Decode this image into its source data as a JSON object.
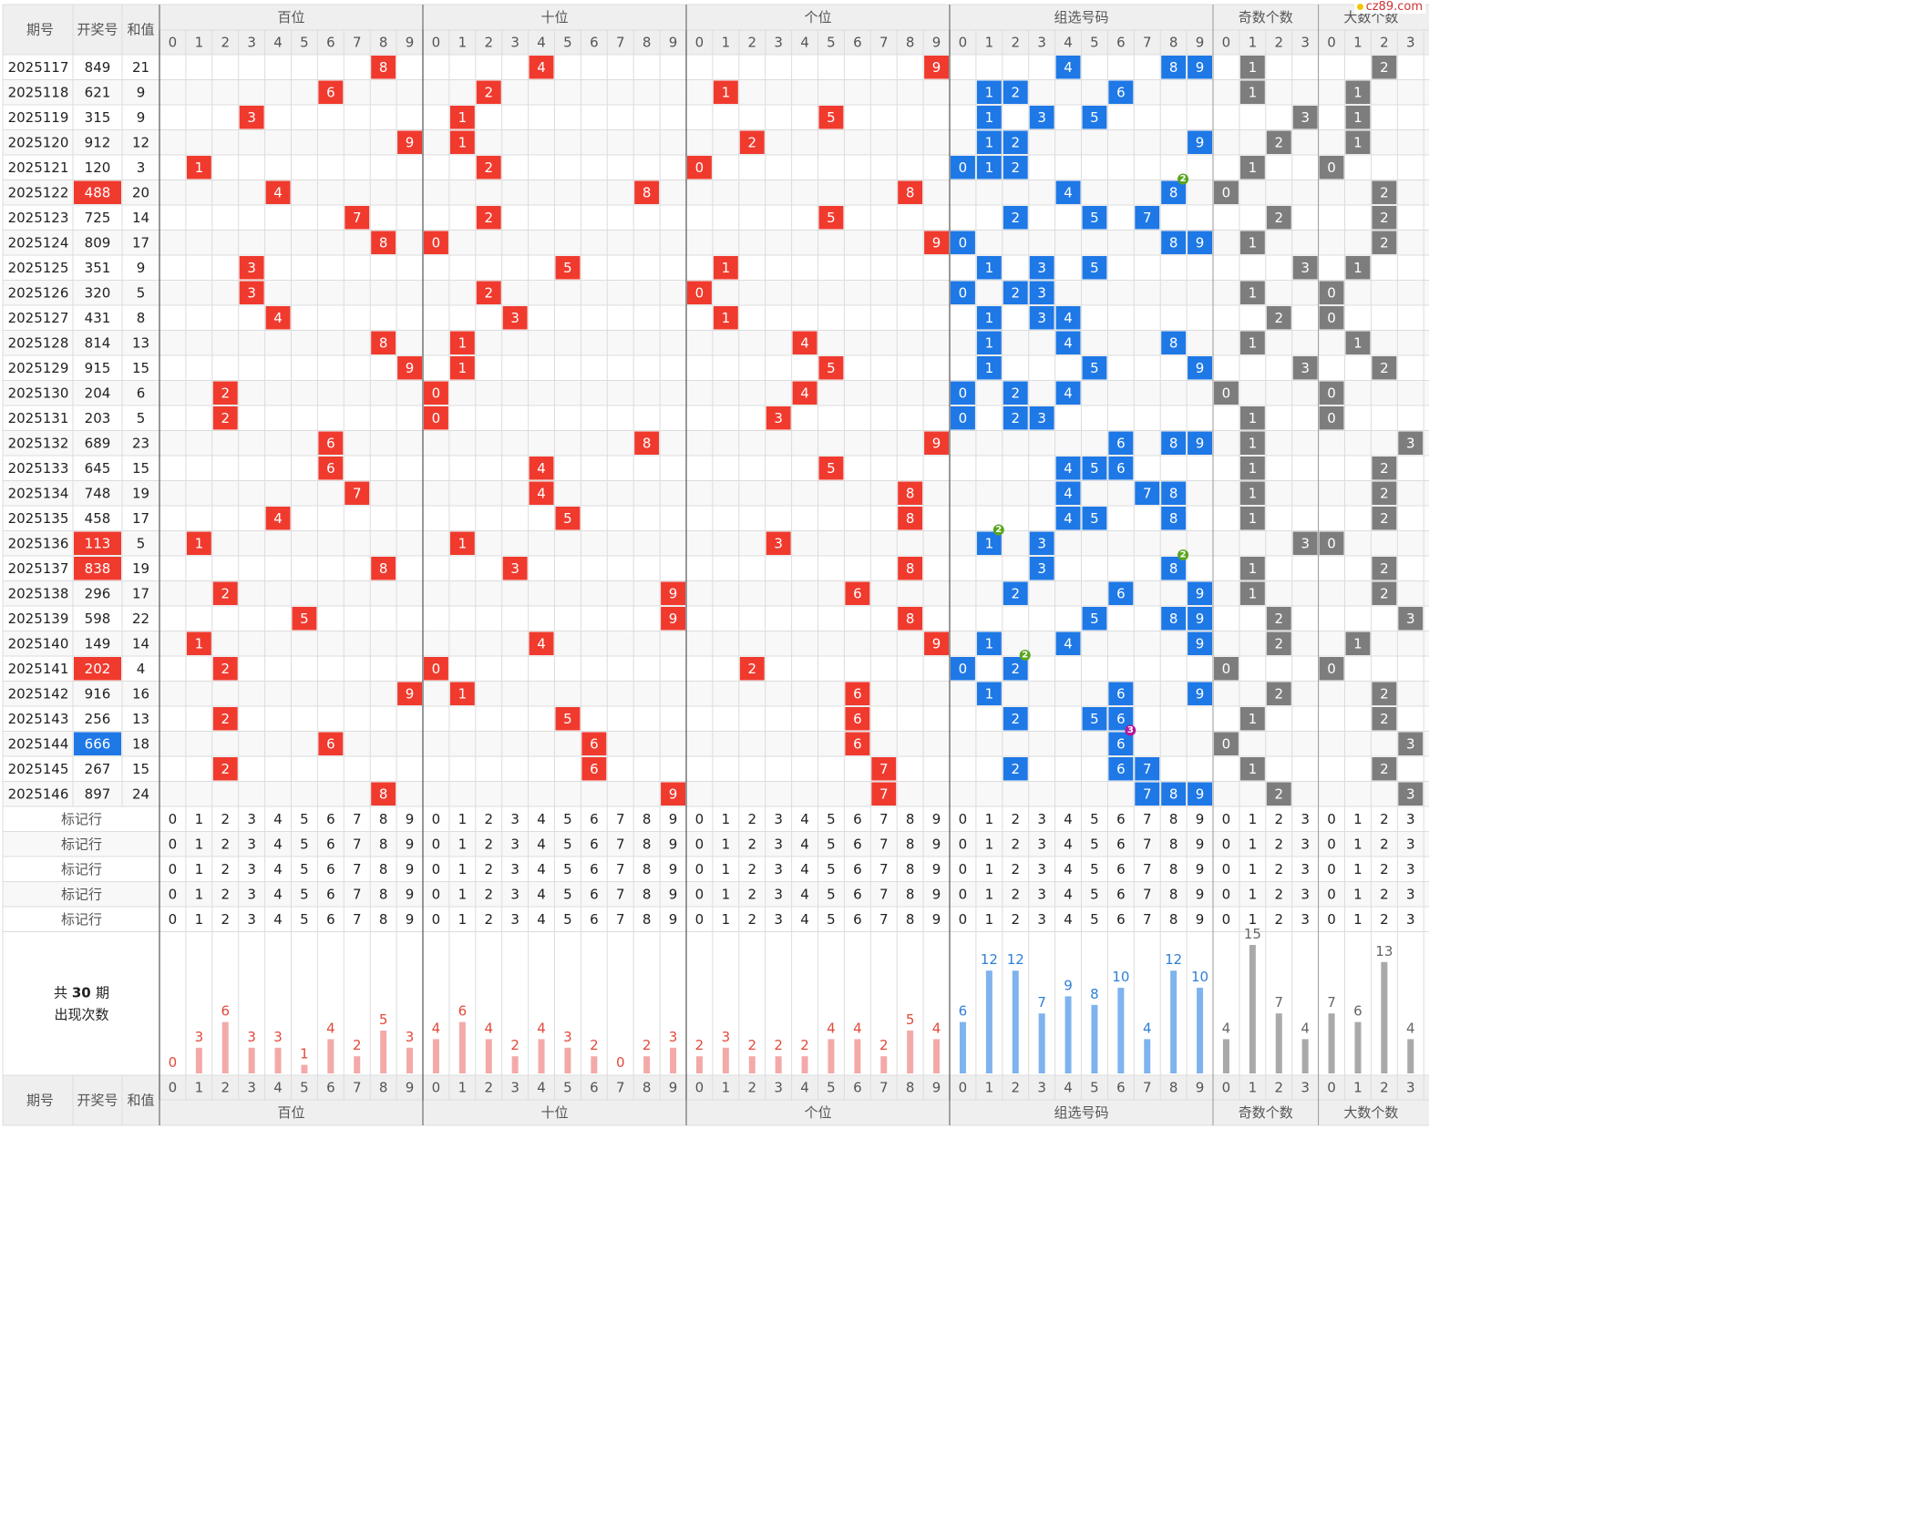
{
  "site_badge": "cz89.com",
  "header": {
    "col_issue": "期号",
    "col_number": "开奖号",
    "col_sum": "和值",
    "groups": [
      "百位",
      "十位",
      "个位",
      "组选号码",
      "奇数个数",
      "大数个数"
    ],
    "digits10": [
      "0",
      "1",
      "2",
      "3",
      "4",
      "5",
      "6",
      "7",
      "8",
      "9"
    ],
    "digits4": [
      "0",
      "1",
      "2",
      "3"
    ]
  },
  "footer_label_row": "标记行",
  "footer_label_rows_count": 5,
  "count_label": {
    "prefix": "共",
    "num": "30",
    "suffix": "期",
    "line2": "出现次数"
  },
  "colors": {
    "red": "#f03a2e",
    "blue": "#1e78e6",
    "gray": "#7d7d7d",
    "green": "#5aa51e",
    "purple": "#b3189c",
    "bar_red": "#f4a9a9",
    "bar_blue": "#7fb3ee",
    "bar_gray": "#a9a9a9"
  },
  "chart_data": {
    "type": "table",
    "rows": [
      {
        "issue": "2025117",
        "number": "849",
        "sum": "21"
      },
      {
        "issue": "2025118",
        "number": "621",
        "sum": "9"
      },
      {
        "issue": "2025119",
        "number": "315",
        "sum": "9"
      },
      {
        "issue": "2025120",
        "number": "912",
        "sum": "12"
      },
      {
        "issue": "2025121",
        "number": "120",
        "sum": "3"
      },
      {
        "issue": "2025122",
        "number": "488",
        "sum": "20",
        "mark": "red"
      },
      {
        "issue": "2025123",
        "number": "725",
        "sum": "14"
      },
      {
        "issue": "2025124",
        "number": "809",
        "sum": "17"
      },
      {
        "issue": "2025125",
        "number": "351",
        "sum": "9"
      },
      {
        "issue": "2025126",
        "number": "320",
        "sum": "5"
      },
      {
        "issue": "2025127",
        "number": "431",
        "sum": "8"
      },
      {
        "issue": "2025128",
        "number": "814",
        "sum": "13"
      },
      {
        "issue": "2025129",
        "number": "915",
        "sum": "15"
      },
      {
        "issue": "2025130",
        "number": "204",
        "sum": "6"
      },
      {
        "issue": "2025131",
        "number": "203",
        "sum": "5"
      },
      {
        "issue": "2025132",
        "number": "689",
        "sum": "23"
      },
      {
        "issue": "2025133",
        "number": "645",
        "sum": "15"
      },
      {
        "issue": "2025134",
        "number": "748",
        "sum": "19"
      },
      {
        "issue": "2025135",
        "number": "458",
        "sum": "17"
      },
      {
        "issue": "2025136",
        "number": "113",
        "sum": "5",
        "mark": "red"
      },
      {
        "issue": "2025137",
        "number": "838",
        "sum": "19",
        "mark": "red"
      },
      {
        "issue": "2025138",
        "number": "296",
        "sum": "17"
      },
      {
        "issue": "2025139",
        "number": "598",
        "sum": "22"
      },
      {
        "issue": "2025140",
        "number": "149",
        "sum": "14"
      },
      {
        "issue": "2025141",
        "number": "202",
        "sum": "4",
        "mark": "red"
      },
      {
        "issue": "2025142",
        "number": "916",
        "sum": "16"
      },
      {
        "issue": "2025143",
        "number": "256",
        "sum": "13"
      },
      {
        "issue": "2025144",
        "number": "666",
        "sum": "18",
        "mark": "blue"
      },
      {
        "issue": "2025145",
        "number": "267",
        "sum": "15"
      },
      {
        "issue": "2025146",
        "number": "897",
        "sum": "24"
      }
    ],
    "counts": {
      "百位": [
        0,
        3,
        6,
        3,
        3,
        1,
        4,
        2,
        5,
        3
      ],
      "十位": [
        4,
        6,
        4,
        2,
        4,
        3,
        2,
        0,
        2,
        3
      ],
      "个位": [
        2,
        3,
        2,
        2,
        2,
        4,
        4,
        2,
        5,
        4
      ],
      "组选号码": [
        6,
        12,
        12,
        7,
        9,
        8,
        10,
        4,
        12,
        10
      ],
      "奇数个数": [
        4,
        15,
        7,
        4
      ],
      "大数个数": [
        7,
        6,
        13,
        4
      ]
    }
  }
}
